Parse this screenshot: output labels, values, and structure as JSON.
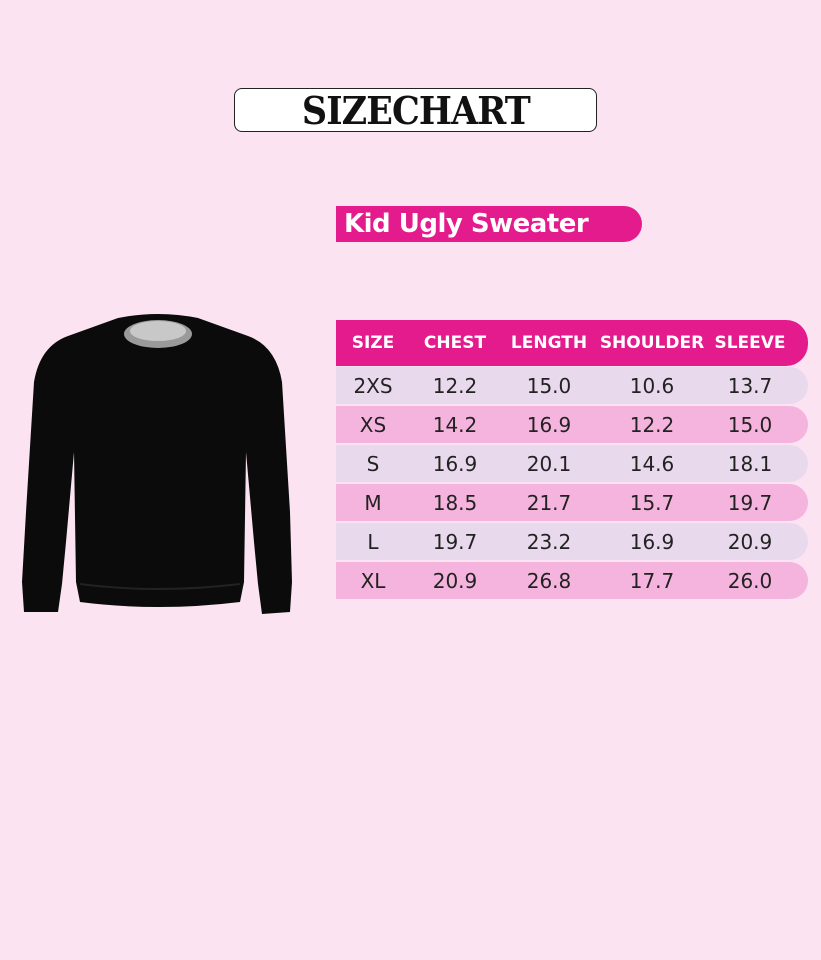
{
  "title": "SIZECHART",
  "product": "Kid Ugly Sweater",
  "colors": {
    "background": "#fbe3f2",
    "accent": "#e31b8d",
    "row_light": "#e8d9ec",
    "row_pink": "#f5b4de",
    "sweater": "#0b0b0b"
  },
  "image": "black-crewneck-sweater",
  "table": {
    "headers": [
      "SIZE",
      "CHEST",
      "LENGTH",
      "SHOULDER",
      "SLEEVE"
    ],
    "rows": [
      [
        "2XS",
        "12.2",
        "15.0",
        "10.6",
        "13.7"
      ],
      [
        "XS",
        "14.2",
        "16.9",
        "12.2",
        "15.0"
      ],
      [
        "S",
        "16.9",
        "20.1",
        "14.6",
        "18.1"
      ],
      [
        "M",
        "18.5",
        "21.7",
        "15.7",
        "19.7"
      ],
      [
        "L",
        "19.7",
        "23.2",
        "16.9",
        "20.9"
      ],
      [
        "XL",
        "20.9",
        "26.8",
        "17.7",
        "26.0"
      ]
    ]
  }
}
